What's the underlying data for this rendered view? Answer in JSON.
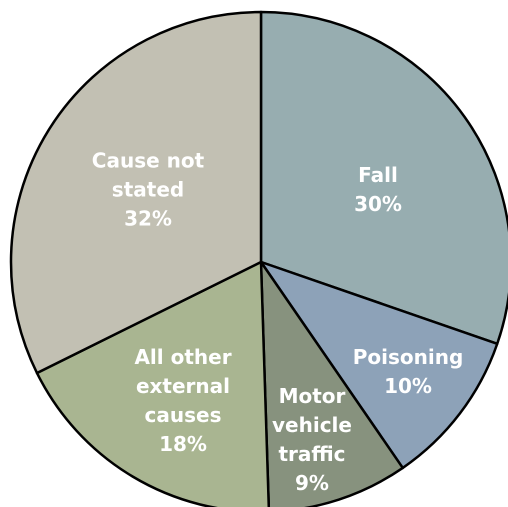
{
  "chart_data": {
    "type": "pie",
    "categories": [
      "Fall",
      "Poisoning",
      "Motor vehicle traffic",
      "All other external causes",
      "Cause not stated"
    ],
    "values": [
      30,
      10,
      9,
      18,
      32
    ],
    "value_labels": [
      "30%",
      "10%",
      "9%",
      "18%",
      "32%"
    ],
    "colors": [
      "#97adb0",
      "#8da2b8",
      "#87927e",
      "#a9b591",
      "#c2c0b3"
    ]
  }
}
